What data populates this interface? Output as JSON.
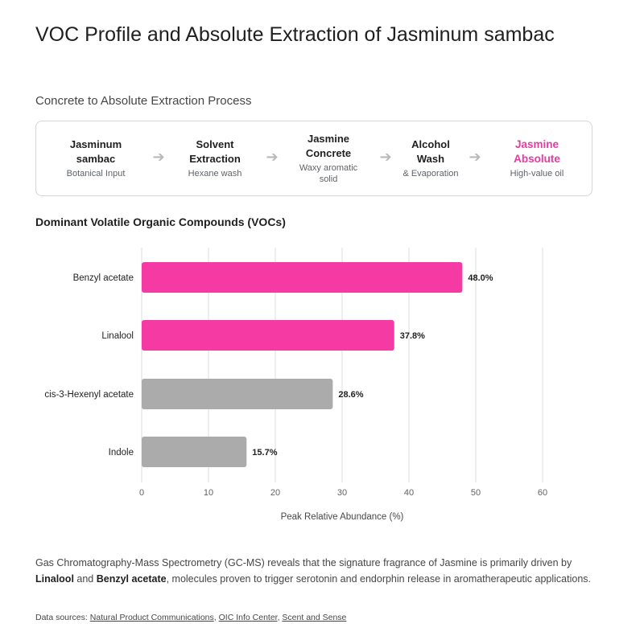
{
  "title": "VOC Profile and Absolute Extraction of Jasminum sambac",
  "process": {
    "heading": "Concrete to Absolute Extraction Process",
    "steps": [
      {
        "title": "Jasminum sambac",
        "subtitle": "Botanical Input"
      },
      {
        "title": "Solvent Extraction",
        "subtitle": "Hexane wash"
      },
      {
        "title": "Jasmine Concrete",
        "subtitle": "Waxy aromatic solid"
      },
      {
        "title": "Alcohol Wash",
        "subtitle": "& Evaporation"
      },
      {
        "title": "Jasmine Absolute",
        "subtitle": "High-value oil"
      }
    ],
    "arrow_glyph": "➔"
  },
  "chart_heading": "Dominant Volatile Organic Compounds (VOCs)",
  "chart_data": {
    "type": "bar",
    "orientation": "horizontal",
    "categories": [
      "Benzyl acetate",
      "Linalool",
      "cis-3-Hexenyl acetate",
      "Indole"
    ],
    "values": [
      48.0,
      37.8,
      28.6,
      15.7
    ],
    "value_labels": [
      "48.0%",
      "37.8%",
      "28.6%",
      "15.7%"
    ],
    "bar_colors": [
      "#f53ba3",
      "#f53ba3",
      "#ababab",
      "#ababab"
    ],
    "xlabel": "Peak Relative Abundance (%)",
    "xlim": [
      0,
      60
    ],
    "xticks": [
      0,
      10,
      20,
      30,
      40,
      50,
      60
    ],
    "grid": true
  },
  "description": {
    "part1": "Gas Chromatography-Mass Spectrometry (GC-MS) reveals that the signature fragrance of Jasmine is primarily driven by ",
    "bold1": "Linalool",
    "part2": " and ",
    "bold2": "Benzyl acetate",
    "part3": ", molecules proven to trigger serotonin and endorphin release in aromatherapeutic applications."
  },
  "sources": {
    "label": "Data sources: ",
    "links": [
      "Natural Product Communications",
      "OIC Info Center",
      "Scent and Sense"
    ]
  },
  "colors": {
    "accent": "#e63c9f",
    "bar_primary": "#f53ba3",
    "bar_secondary": "#ababab"
  }
}
